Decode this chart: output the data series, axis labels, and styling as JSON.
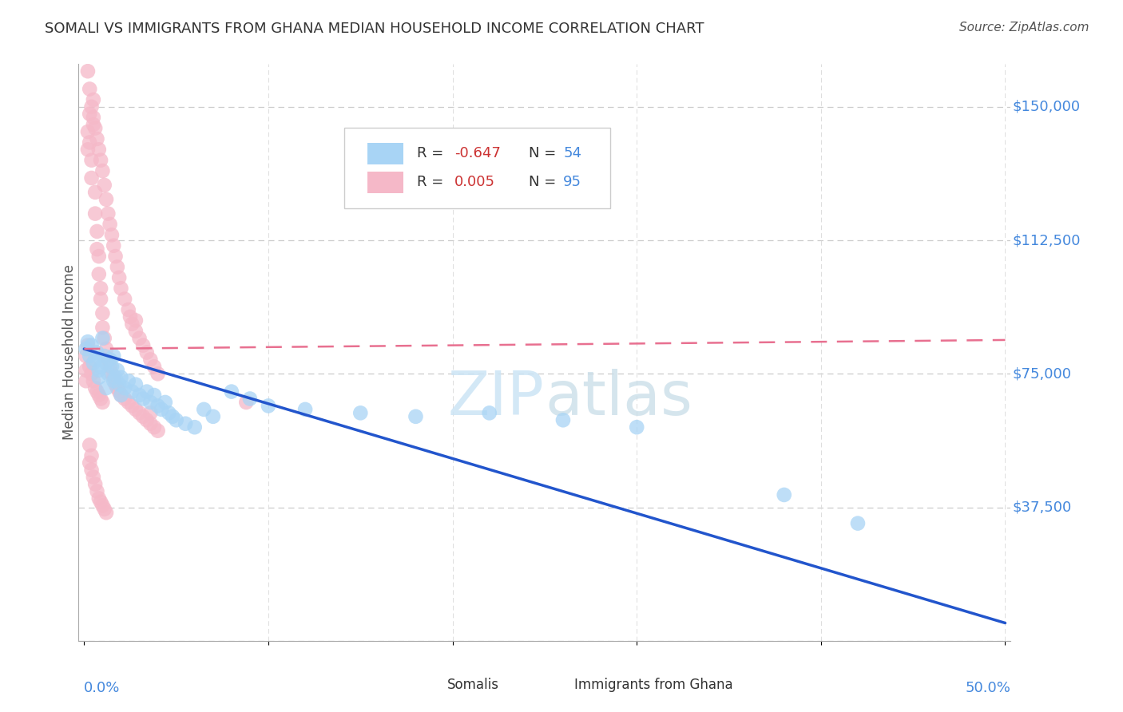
{
  "title": "SOMALI VS IMMIGRANTS FROM GHANA MEDIAN HOUSEHOLD INCOME CORRELATION CHART",
  "source": "Source: ZipAtlas.com",
  "ylabel": "Median Household Income",
  "ytick_vals": [
    0,
    37500,
    75000,
    112500,
    150000
  ],
  "ytick_labels": [
    "",
    "$37,500",
    "$75,000",
    "$112,500",
    "$150,000"
  ],
  "xlim": [
    0.0,
    0.5
  ],
  "ylim": [
    0,
    162000
  ],
  "watermark": "ZIPatlas",
  "somali_R": "-0.647",
  "somali_N": "54",
  "ghana_R": "0.005",
  "ghana_N": "95",
  "somali_color": "#a8d4f5",
  "ghana_color": "#f5b8c8",
  "somali_line_color": "#2255cc",
  "ghana_line_color": "#e87090",
  "somali_line_x0": 0.0,
  "somali_line_y0": 82000,
  "somali_line_x1": 0.5,
  "somali_line_y1": 5000,
  "ghana_line_x0": 0.0,
  "ghana_line_y0": 82000,
  "ghana_line_x1": 0.5,
  "ghana_line_y1": 84500,
  "somali_x": [
    0.001,
    0.002,
    0.003,
    0.004,
    0.005,
    0.006,
    0.007,
    0.008,
    0.009,
    0.01,
    0.011,
    0.012,
    0.013,
    0.014,
    0.015,
    0.016,
    0.017,
    0.018,
    0.019,
    0.02,
    0.022,
    0.024,
    0.026,
    0.028,
    0.03,
    0.032,
    0.034,
    0.036,
    0.038,
    0.04,
    0.042,
    0.044,
    0.046,
    0.048,
    0.05,
    0.055,
    0.06,
    0.065,
    0.07,
    0.08,
    0.09,
    0.1,
    0.12,
    0.15,
    0.18,
    0.22,
    0.26,
    0.3,
    0.38,
    0.42,
    0.008,
    0.012,
    0.016,
    0.02
  ],
  "somali_y": [
    82000,
    84000,
    80000,
    83000,
    78000,
    79000,
    81000,
    76000,
    77000,
    85000,
    80000,
    78000,
    75000,
    79000,
    77000,
    80000,
    74000,
    76000,
    72000,
    74000,
    71000,
    73000,
    70000,
    72000,
    69000,
    68000,
    70000,
    67000,
    69000,
    66000,
    65000,
    67000,
    64000,
    63000,
    62000,
    61000,
    60000,
    65000,
    63000,
    70000,
    68000,
    66000,
    65000,
    64000,
    63000,
    64000,
    62000,
    60000,
    41000,
    33000,
    74000,
    71000,
    73000,
    69000
  ],
  "ghana_x": [
    0.001,
    0.001,
    0.001,
    0.002,
    0.002,
    0.002,
    0.003,
    0.003,
    0.003,
    0.004,
    0.004,
    0.004,
    0.005,
    0.005,
    0.005,
    0.006,
    0.006,
    0.006,
    0.007,
    0.007,
    0.007,
    0.008,
    0.008,
    0.008,
    0.009,
    0.009,
    0.009,
    0.01,
    0.01,
    0.01,
    0.011,
    0.012,
    0.013,
    0.014,
    0.015,
    0.016,
    0.017,
    0.018,
    0.019,
    0.02,
    0.022,
    0.024,
    0.026,
    0.028,
    0.03,
    0.032,
    0.034,
    0.036,
    0.038,
    0.04,
    0.002,
    0.003,
    0.004,
    0.005,
    0.006,
    0.007,
    0.008,
    0.009,
    0.01,
    0.011,
    0.012,
    0.013,
    0.014,
    0.015,
    0.016,
    0.017,
    0.018,
    0.019,
    0.02,
    0.022,
    0.024,
    0.025,
    0.026,
    0.028,
    0.03,
    0.032,
    0.034,
    0.036,
    0.038,
    0.04,
    0.003,
    0.004,
    0.005,
    0.006,
    0.007,
    0.008,
    0.009,
    0.01,
    0.011,
    0.012,
    0.003,
    0.004,
    0.028,
    0.036,
    0.088
  ],
  "ghana_y": [
    80000,
    76000,
    73000,
    143000,
    138000,
    83000,
    148000,
    140000,
    77000,
    135000,
    130000,
    75000,
    152000,
    145000,
    73000,
    126000,
    120000,
    71000,
    115000,
    110000,
    70000,
    108000,
    103000,
    69000,
    99000,
    96000,
    68000,
    92000,
    88000,
    67000,
    85000,
    82000,
    79000,
    77000,
    75000,
    74000,
    72000,
    71000,
    70000,
    69000,
    68000,
    67000,
    66000,
    65000,
    64000,
    63000,
    62000,
    61000,
    60000,
    59000,
    160000,
    155000,
    150000,
    147000,
    144000,
    141000,
    138000,
    135000,
    132000,
    128000,
    124000,
    120000,
    117000,
    114000,
    111000,
    108000,
    105000,
    102000,
    99000,
    96000,
    93000,
    91000,
    89000,
    87000,
    85000,
    83000,
    81000,
    79000,
    77000,
    75000,
    50000,
    48000,
    46000,
    44000,
    42000,
    40000,
    39000,
    38000,
    37000,
    36000,
    55000,
    52000,
    90000,
    64000,
    67000
  ]
}
